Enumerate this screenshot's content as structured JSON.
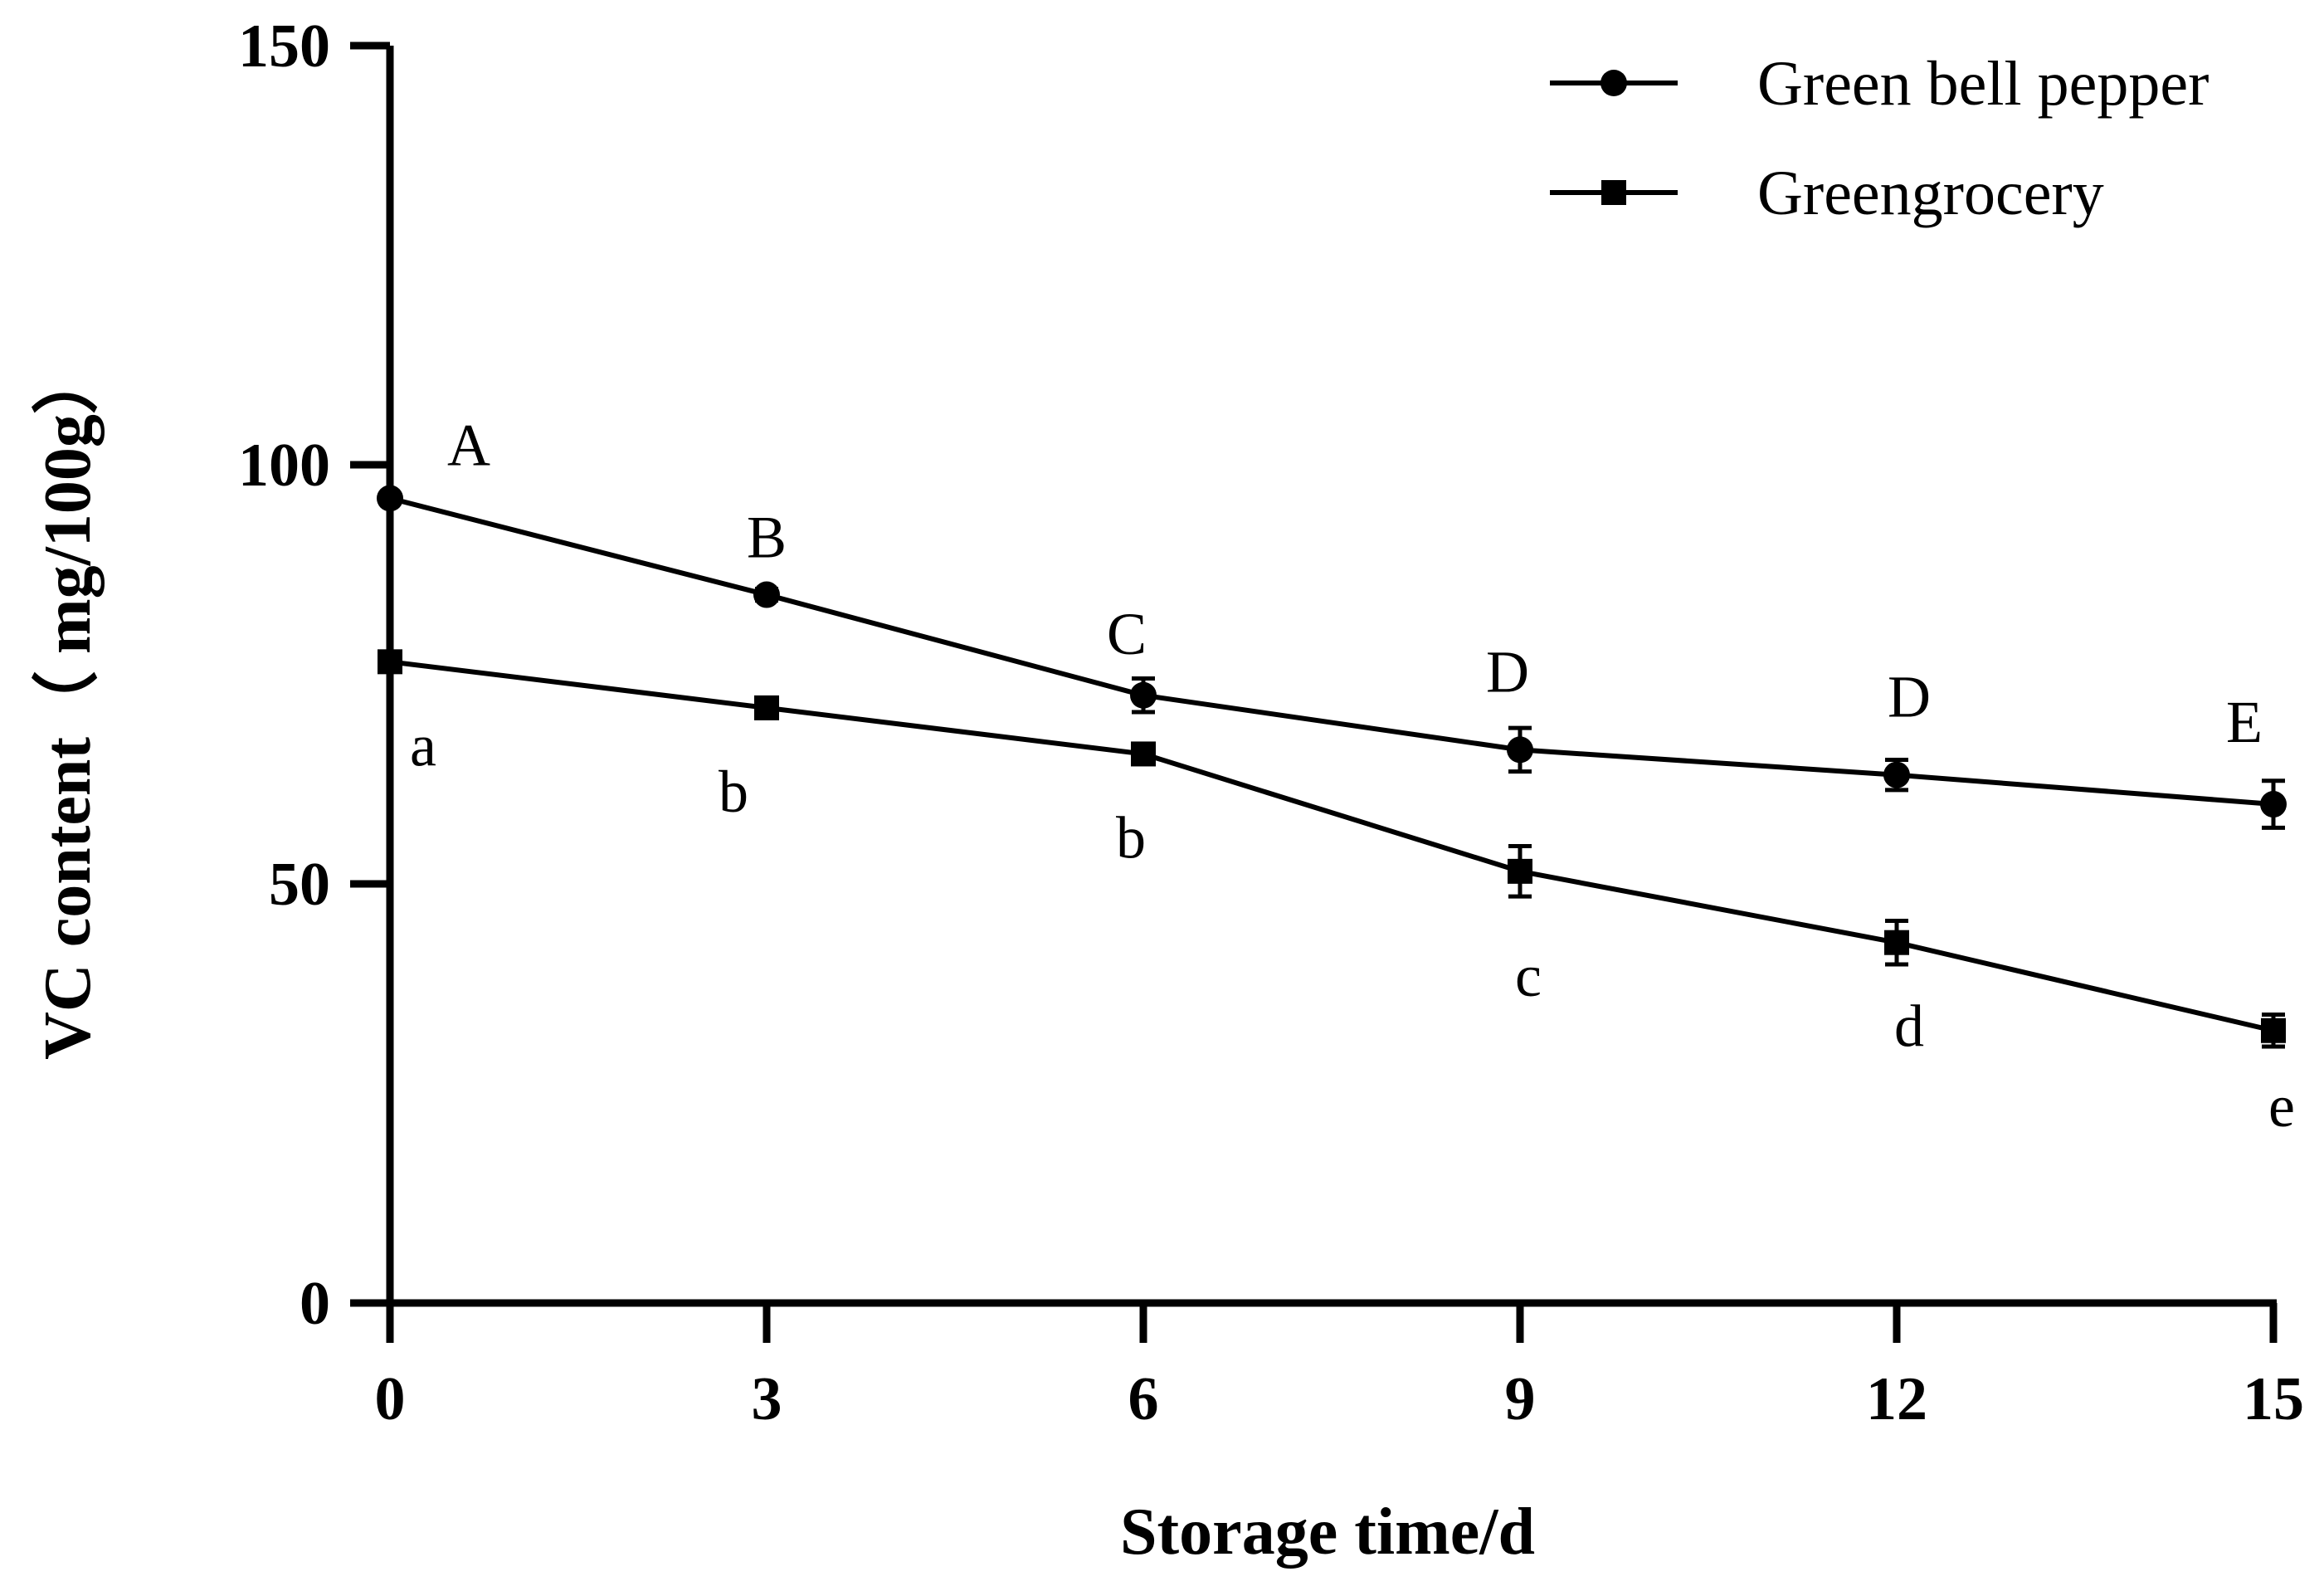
{
  "chart_data": {
    "type": "line",
    "xlabel": "Storage time/d",
    "ylabel": "VC content（ mg/100g）",
    "x": [
      0,
      3,
      6,
      9,
      12,
      15
    ],
    "x_ticks": [
      "0",
      "3",
      "6",
      "9",
      "12",
      "15"
    ],
    "y_ticks": [
      "0",
      "50",
      "100",
      "150"
    ],
    "xlim": [
      0,
      15
    ],
    "ylim": [
      0,
      150
    ],
    "grid": false,
    "legend_position": "top-right",
    "series": [
      {
        "name": "Green bell pepper",
        "marker": "circle",
        "values": [
          96,
          84.5,
          72.5,
          66,
          63,
          59.5
        ],
        "errors": [
          0.5,
          0.7,
          2.0,
          2.6,
          1.8,
          2.8
        ],
        "significance": [
          "A",
          "B",
          "C",
          "D",
          "D",
          "E"
        ]
      },
      {
        "name": "Greengrocery",
        "marker": "square",
        "values": [
          76.5,
          71,
          65.5,
          51.5,
          43,
          32.5
        ],
        "errors": [
          0.6,
          0.8,
          0.8,
          3.0,
          2.6,
          1.9
        ],
        "significance": [
          "a",
          "b",
          "b",
          "c",
          "d",
          "e"
        ]
      }
    ],
    "colors": {
      "line": "#000000",
      "background": "#ffffff"
    }
  }
}
